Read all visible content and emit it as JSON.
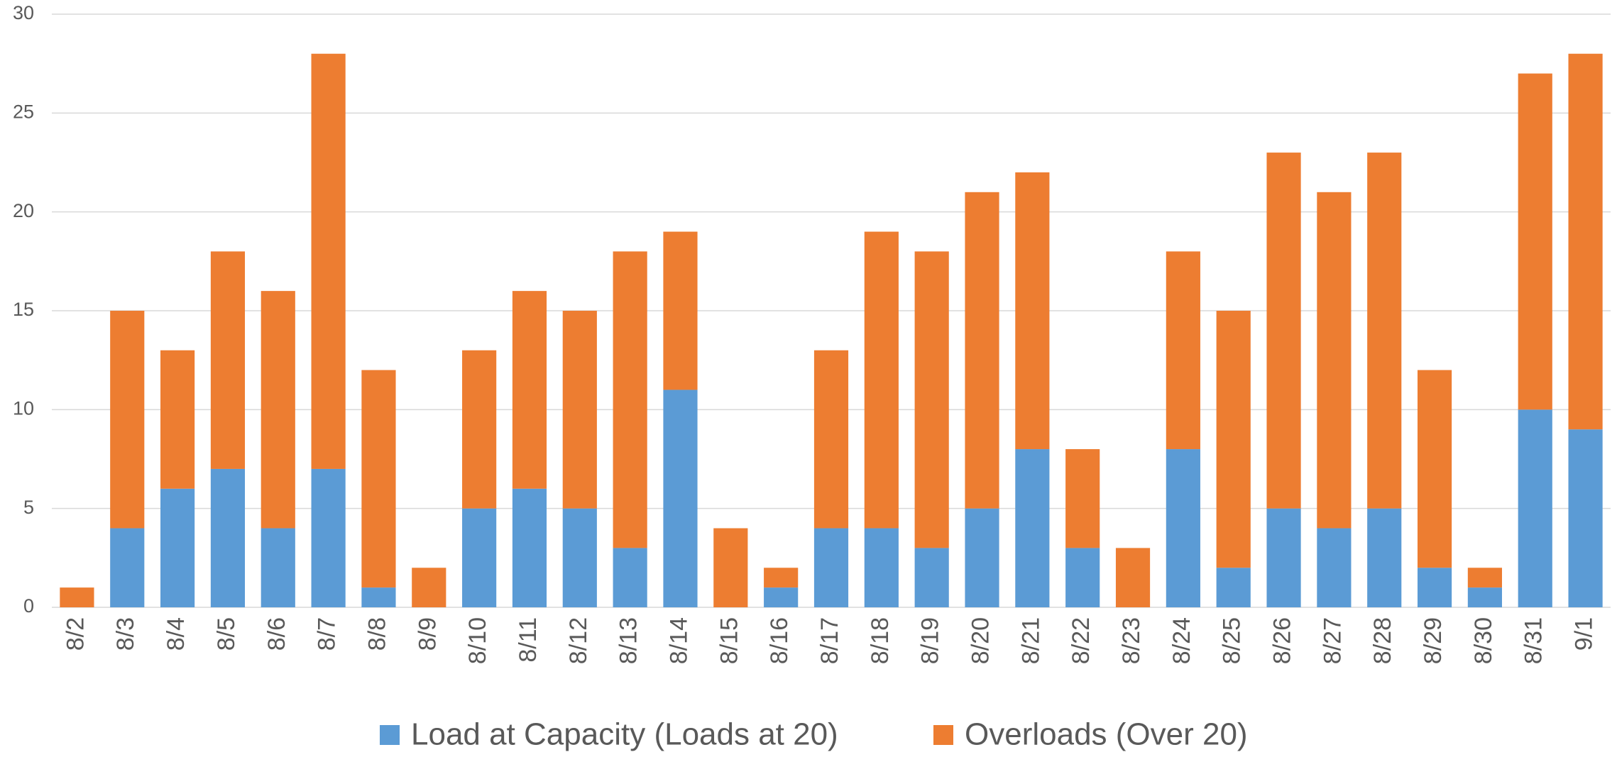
{
  "chart_data": {
    "type": "stacked_bar",
    "categories": [
      "8/2",
      "8/3",
      "8/4",
      "8/5",
      "8/6",
      "8/7",
      "8/8",
      "8/9",
      "8/10",
      "8/11",
      "8/12",
      "8/13",
      "8/14",
      "8/15",
      "8/16",
      "8/17",
      "8/18",
      "8/19",
      "8/20",
      "8/21",
      "8/22",
      "8/23",
      "8/24",
      "8/25",
      "8/26",
      "8/27",
      "8/28",
      "8/29",
      "8/30",
      "8/31",
      "9/1"
    ],
    "series": [
      {
        "name": "Load at Capacity (Loads at 20)",
        "color": "#5b9bd5",
        "values": [
          0,
          4,
          6,
          7,
          4,
          7,
          1,
          0,
          5,
          6,
          5,
          3,
          11,
          0,
          1,
          4,
          4,
          3,
          5,
          8,
          3,
          0,
          8,
          2,
          5,
          4,
          5,
          2,
          1,
          10,
          9
        ]
      },
      {
        "name": "Overloads (Over 20)",
        "color": "#ed7d31",
        "values": [
          1,
          11,
          7,
          11,
          12,
          21,
          11,
          2,
          8,
          10,
          10,
          15,
          8,
          4,
          1,
          9,
          15,
          15,
          16,
          14,
          5,
          3,
          10,
          13,
          18,
          17,
          18,
          10,
          1,
          17,
          19
        ]
      }
    ],
    "ylim": [
      0,
      30
    ],
    "yticks": [
      0,
      5,
      10,
      15,
      20,
      25,
      30
    ],
    "grid": true,
    "legend": "bottom"
  }
}
